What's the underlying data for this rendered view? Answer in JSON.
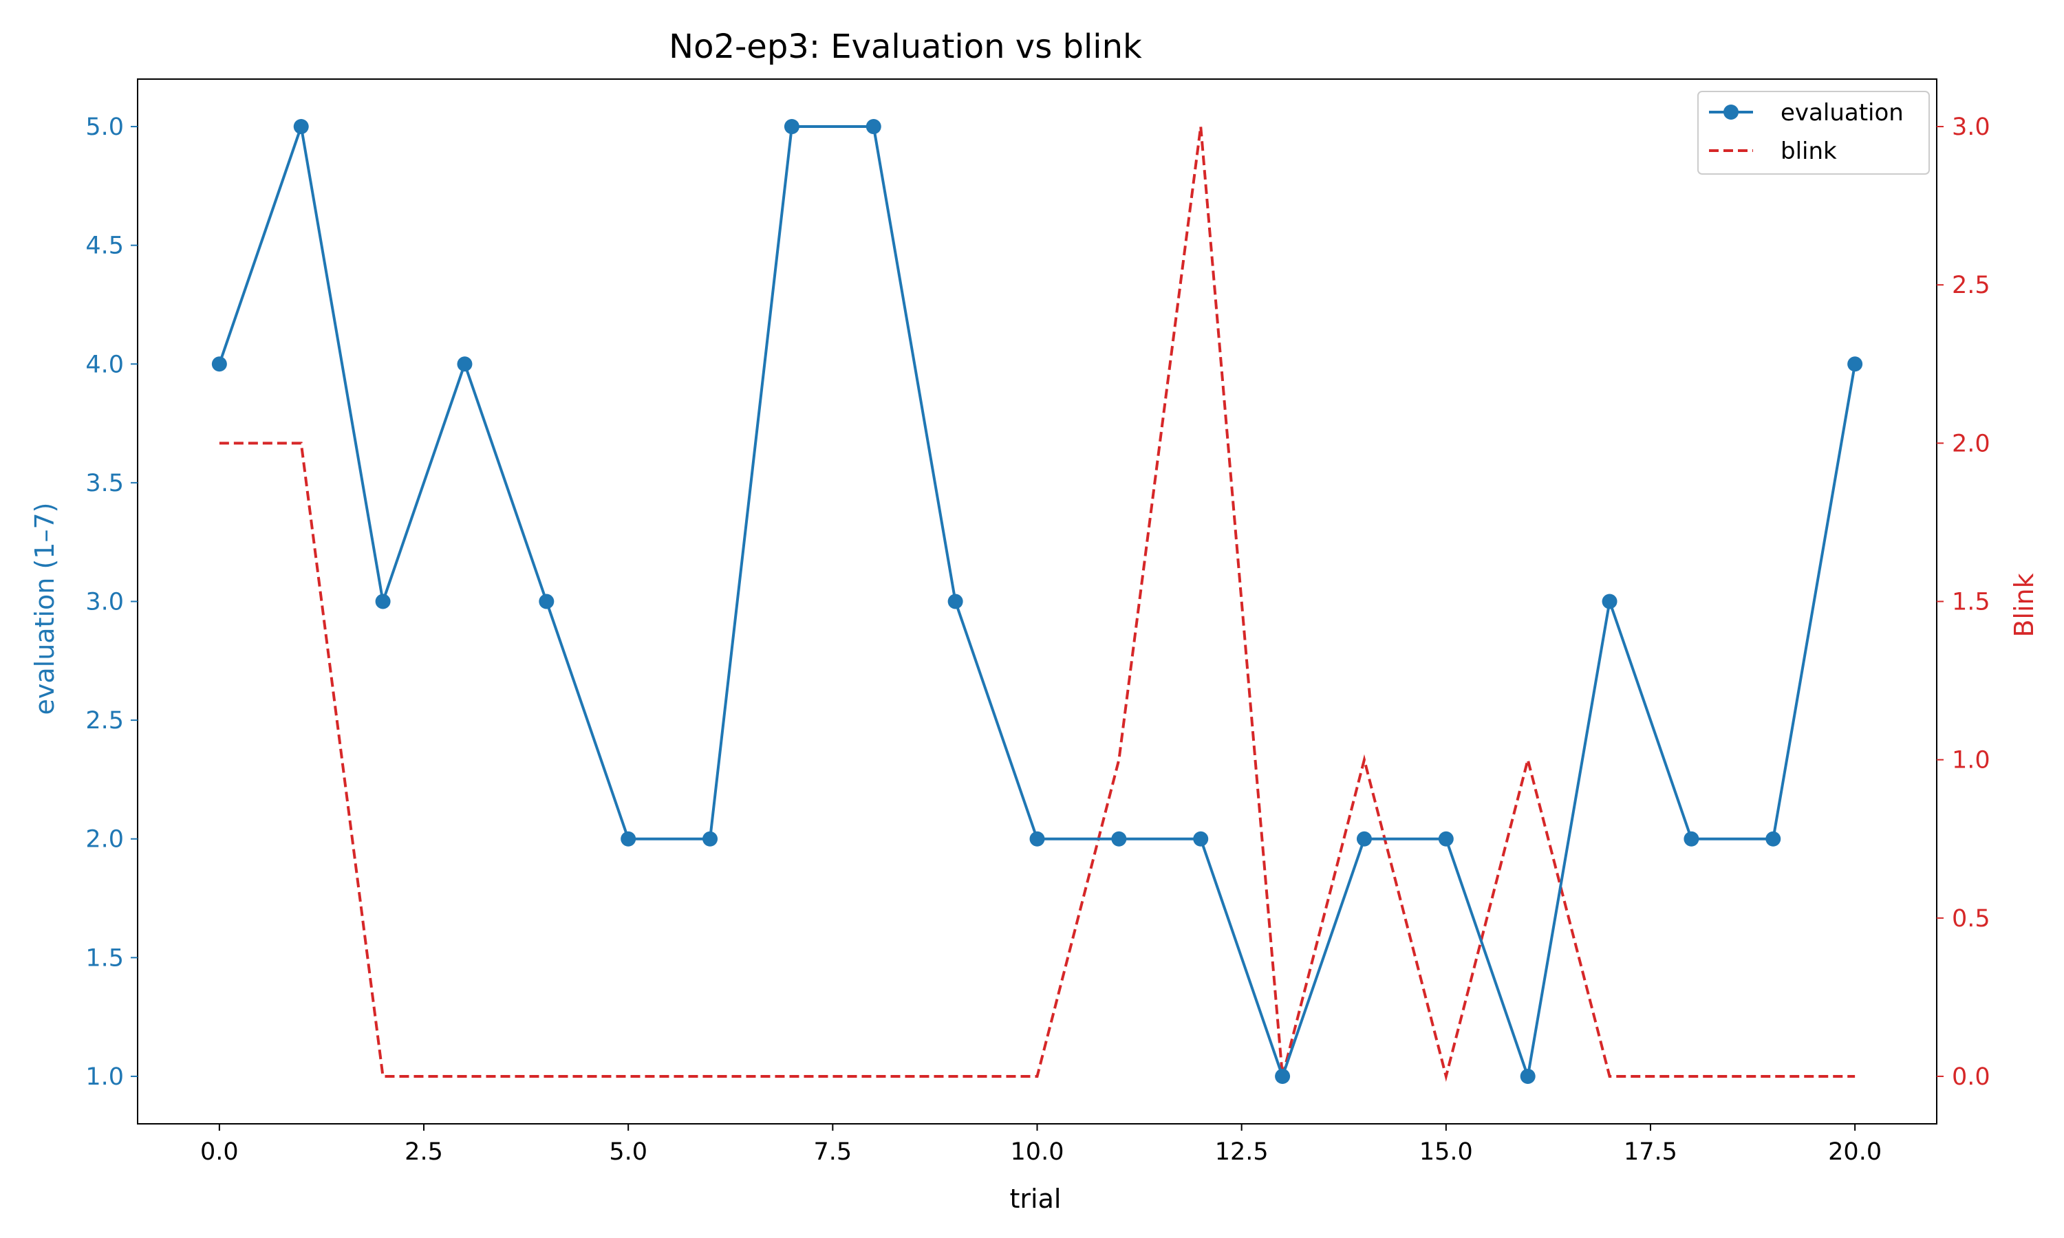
{
  "chart_data": {
    "type": "line",
    "title": "No2-ep3: Evaluation vs blink",
    "xlabel": "trial",
    "ylabel": "evaluation (1–7)",
    "y2label": "Blink",
    "xlim": [
      -1,
      21
    ],
    "ylim": [
      0.8,
      5.2
    ],
    "y2lim": [
      -0.15,
      3.15
    ],
    "xticks": [
      "0.0",
      "2.5",
      "5.0",
      "7.5",
      "10.0",
      "12.5",
      "15.0",
      "17.5",
      "20.0"
    ],
    "yticks": [
      "1.0",
      "1.5",
      "2.0",
      "2.5",
      "3.0",
      "3.5",
      "4.0",
      "4.5",
      "5.0"
    ],
    "y2ticks": [
      "0.0",
      "0.5",
      "1.0",
      "1.5",
      "2.0",
      "2.5",
      "3.0"
    ],
    "grid": false,
    "legend_position": "top-right",
    "colors": {
      "evaluation": "#1f77b4",
      "blink": "#d62728"
    },
    "series": [
      {
        "name": "evaluation",
        "axis": "left",
        "style": "solid-marker",
        "x": [
          0,
          1,
          2,
          3,
          4,
          5,
          6,
          7,
          8,
          9,
          10,
          11,
          12,
          13,
          14,
          15,
          16,
          17,
          18,
          19,
          20
        ],
        "values": [
          4,
          5,
          3,
          4,
          3,
          2,
          2,
          5,
          5,
          3,
          2,
          2,
          2,
          1,
          2,
          2,
          1,
          3,
          2,
          2,
          4
        ]
      },
      {
        "name": "blink",
        "axis": "right",
        "style": "dashed",
        "x": [
          0,
          1,
          2,
          3,
          4,
          5,
          6,
          7,
          8,
          9,
          10,
          11,
          12,
          13,
          14,
          15,
          16,
          17,
          18,
          19,
          20
        ],
        "values": [
          2,
          2,
          0,
          0,
          0,
          0,
          0,
          0,
          0,
          0,
          0,
          1,
          3,
          0,
          1,
          0,
          1,
          0,
          0,
          0,
          0
        ]
      }
    ]
  }
}
